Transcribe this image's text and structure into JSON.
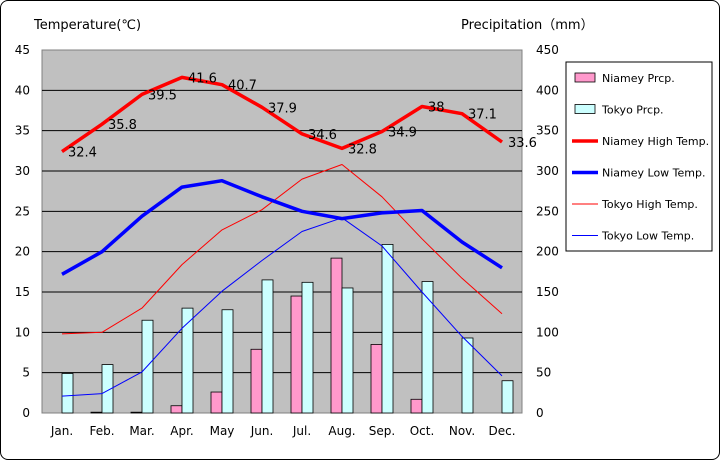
{
  "chart_data": {
    "type": "bar+line",
    "left_axis_title": "Temperature(℃)",
    "right_axis_title": "Precipitation（mm）",
    "categories": [
      "Jan.",
      "Feb.",
      "Mar.",
      "Apr.",
      "May",
      "Jun.",
      "Jul.",
      "Aug.",
      "Sep.",
      "Oct.",
      "Nov.",
      "Dec."
    ],
    "left_ylim": [
      0,
      45
    ],
    "left_ticks": [
      "0",
      "5",
      "10",
      "15",
      "20",
      "25",
      "30",
      "35",
      "40",
      "45"
    ],
    "right_ylim": [
      0,
      450
    ],
    "right_ticks": [
      "0",
      "50",
      "100",
      "150",
      "200",
      "250",
      "300",
      "350",
      "400",
      "450"
    ],
    "grid": "horizontal",
    "legend_position": "right",
    "series": [
      {
        "name": "Niamey Prcp.",
        "kind": "bar",
        "axis": "right",
        "color": "#ff99cc",
        "values": [
          0,
          1,
          1,
          9,
          26,
          79,
          145,
          192,
          85,
          17,
          0,
          0
        ]
      },
      {
        "name": "Tokyo Prcp.",
        "kind": "bar",
        "axis": "right",
        "color": "#ccffff",
        "values": [
          49,
          60,
          115,
          130,
          128,
          165,
          162,
          155,
          209,
          163,
          93,
          40
        ]
      },
      {
        "name": "Niamey High Temp.",
        "kind": "line",
        "axis": "left",
        "color": "#ff0000",
        "width": 3.5,
        "values": [
          32.4,
          35.8,
          39.5,
          41.6,
          40.7,
          37.9,
          34.6,
          32.8,
          34.9,
          38,
          37.1,
          33.6
        ],
        "labels": [
          "32.4",
          "35.8",
          "39.5",
          "41.6",
          "40.7",
          "37.9",
          "34.6",
          "32.8",
          "34.9",
          "38",
          "37.1",
          "33.6"
        ]
      },
      {
        "name": "Niamey Low Temp.",
        "kind": "line",
        "axis": "left",
        "color": "#0000ff",
        "width": 3.5,
        "values": [
          17.2,
          20,
          24.4,
          28,
          28.8,
          26.8,
          25,
          24.1,
          24.8,
          25.1,
          21.2,
          18
        ]
      },
      {
        "name": "Tokyo High Temp.",
        "kind": "line",
        "axis": "left",
        "color": "#ff0000",
        "width": 1,
        "values": [
          9.8,
          10,
          13,
          18.4,
          22.7,
          25.2,
          29,
          30.8,
          26.8,
          21.6,
          16.7,
          12.3
        ]
      },
      {
        "name": "Tokyo Low Temp.",
        "kind": "line",
        "axis": "left",
        "color": "#0000ff",
        "width": 1,
        "values": [
          2.1,
          2.4,
          5.1,
          10.5,
          15.1,
          18.9,
          22.5,
          24.2,
          20.7,
          15,
          9.5,
          4.6
        ]
      }
    ]
  }
}
